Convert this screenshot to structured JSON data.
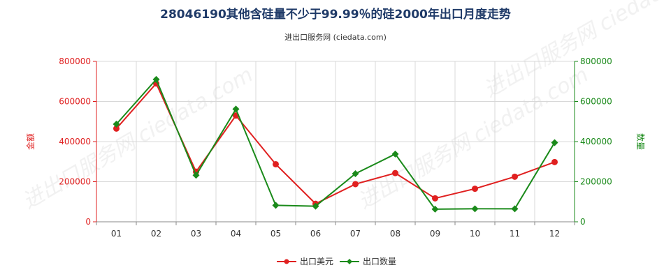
{
  "chart_data": {
    "type": "line",
    "title": "28046190其他含硅量不少于99.99％的硅2000年出口月度走势",
    "subtitle": "进出口服务网 (ciedata.com)",
    "categories": [
      "01",
      "02",
      "03",
      "04",
      "05",
      "06",
      "07",
      "08",
      "09",
      "10",
      "11",
      "12"
    ],
    "y_left": {
      "label": "金额",
      "ticks": [
        "0",
        "200000",
        "400000",
        "600000",
        "800000"
      ],
      "range": [
        0,
        800000
      ],
      "color": "#e02020"
    },
    "y_right": {
      "label": "数量",
      "ticks": [
        "0",
        "200000",
        "400000",
        "600000",
        "800000"
      ],
      "range": [
        0,
        800000
      ],
      "color": "#1a8a1a"
    },
    "series": [
      {
        "name": "出口美元",
        "axis": "left",
        "color": "#e02020",
        "marker": "circle",
        "values": [
          465000,
          690000,
          250000,
          530000,
          287000,
          90000,
          188000,
          243000,
          117000,
          165000,
          225000,
          298000
        ]
      },
      {
        "name": "出口数量",
        "axis": "right",
        "color": "#1a8a1a",
        "marker": "diamond",
        "values": [
          487000,
          710000,
          232000,
          562000,
          82000,
          78000,
          240000,
          338000,
          63000,
          65000,
          65000,
          395000
        ]
      }
    ],
    "grid": true,
    "legend": "bottom-center"
  }
}
